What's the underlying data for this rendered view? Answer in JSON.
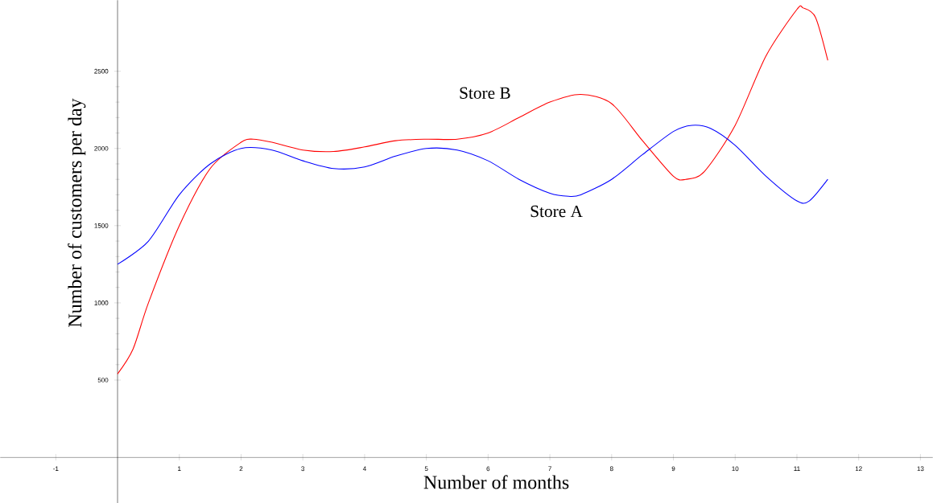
{
  "chart_data": {
    "type": "line",
    "xlabel": "Number of months",
    "ylabel": "Number of customers per day",
    "xlim": [
      -1.9,
      13.2
    ],
    "ylim": [
      -297,
      2960
    ],
    "xticks": [
      -1,
      1,
      2,
      3,
      4,
      5,
      6,
      7,
      8,
      9,
      10,
      11,
      12,
      13
    ],
    "yticks": [
      500,
      1000,
      1500,
      2000,
      2500
    ],
    "grid": false,
    "legend": false,
    "marker": "none",
    "line_style": "solid",
    "series": [
      {
        "name": "Store B",
        "color": "#ff0000",
        "x": [
          0,
          0.25,
          0.5,
          1,
          1.5,
          2,
          2.2,
          2.5,
          3,
          3.5,
          4,
          4.5,
          5,
          5.5,
          6,
          6.5,
          7,
          7.5,
          8,
          8.5,
          9,
          9.2,
          9.5,
          10,
          10.5,
          11,
          11.1,
          11.3,
          11.5
        ],
        "values": [
          540,
          700,
          1000,
          1500,
          1870,
          2040,
          2060,
          2040,
          1990,
          1980,
          2010,
          2050,
          2060,
          2060,
          2100,
          2200,
          2300,
          2350,
          2290,
          2050,
          1820,
          1800,
          1850,
          2150,
          2600,
          2900,
          2910,
          2850,
          2570
        ]
      },
      {
        "name": "Store A",
        "color": "#0000ff",
        "x": [
          0,
          0.5,
          1,
          1.5,
          2,
          2.5,
          3,
          3.5,
          4,
          4.5,
          5,
          5.5,
          6,
          6.5,
          7,
          7.3,
          7.5,
          8,
          8.5,
          9,
          9.3,
          9.6,
          10,
          10.5,
          11,
          11.2,
          11.5
        ],
        "values": [
          1250,
          1400,
          1700,
          1900,
          2000,
          1990,
          1920,
          1870,
          1880,
          1950,
          2000,
          1990,
          1920,
          1800,
          1710,
          1690,
          1700,
          1800,
          1960,
          2110,
          2150,
          2130,
          2020,
          1820,
          1660,
          1660,
          1800
        ]
      }
    ]
  }
}
